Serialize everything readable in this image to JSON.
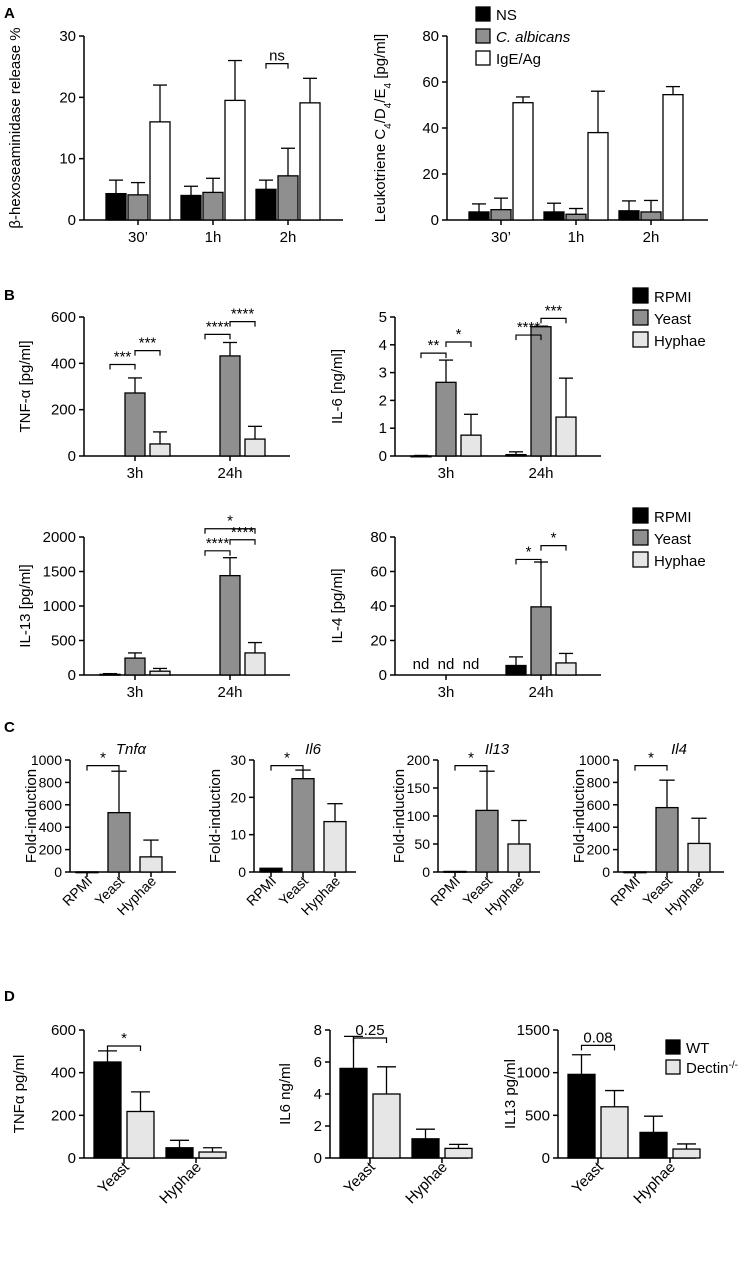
{
  "colors": {
    "black": "#000000",
    "gray": "#8f8f8f",
    "light": "#e6e6e6",
    "white": "#ffffff"
  },
  "panel_labels": {
    "A": "A",
    "B": "B",
    "C": "C",
    "D": "D"
  },
  "chart_data": [
    {
      "id": "a1",
      "type": "bar",
      "ylabel": "β-hexoseaminidase release %",
      "ylim": [
        0,
        30
      ],
      "yticks": [
        0,
        10,
        20,
        30
      ],
      "categories": [
        "30’",
        "1h",
        "2h"
      ],
      "series": [
        {
          "name": "NS",
          "color": "black",
          "values": [
            4.3,
            4.0,
            5.0
          ],
          "errors": [
            2.2,
            1.5,
            1.5
          ]
        },
        {
          "name": "C. albicans",
          "color": "gray",
          "values": [
            4.1,
            4.5,
            7.2
          ],
          "errors": [
            2.0,
            2.3,
            4.5
          ]
        },
        {
          "name": "IgE/Ag",
          "color": "white",
          "values": [
            16.0,
            19.5,
            19.1
          ],
          "errors": [
            6.0,
            6.5,
            4.0
          ]
        }
      ],
      "annotations": [
        {
          "text": "ns",
          "cat": 2,
          "from": 0,
          "to": 1,
          "y": 25.5
        }
      ]
    },
    {
      "id": "a2",
      "type": "bar",
      "ylabel": "Leukotriene C4/D4/E4 [pg/ml]",
      "ylim": [
        0,
        80
      ],
      "yticks": [
        0,
        20,
        40,
        60,
        80
      ],
      "categories": [
        "30’",
        "1h",
        "2h"
      ],
      "series": [
        {
          "name": "NS",
          "color": "black",
          "values": [
            3.5,
            3.5,
            4.0
          ],
          "errors": [
            3.5,
            3.8,
            4.3
          ]
        },
        {
          "name": "C. albicans",
          "color": "gray",
          "values": [
            4.5,
            2.5,
            3.5
          ],
          "errors": [
            5.0,
            2.5,
            5.0
          ]
        },
        {
          "name": "IgE/Ag",
          "color": "white",
          "values": [
            51.0,
            38.0,
            54.5
          ],
          "errors": [
            2.5,
            18.0,
            3.5
          ]
        }
      ],
      "legend": {
        "position": "top-right",
        "entries": [
          "NS",
          "C. albicans",
          "IgE/Ag"
        ]
      }
    },
    {
      "id": "b1",
      "type": "bar",
      "ylabel": "TNF-α [pg/ml]",
      "ylim": [
        0,
        600
      ],
      "yticks": [
        0,
        200,
        400,
        600
      ],
      "categories": [
        "3h",
        "24h"
      ],
      "series": [
        {
          "name": "RPMI",
          "color": "black",
          "values": [
            0,
            0
          ],
          "errors": [
            0,
            0
          ]
        },
        {
          "name": "Yeast",
          "color": "gray",
          "values": [
            272,
            432
          ],
          "errors": [
            65,
            58
          ]
        },
        {
          "name": "Hyphae",
          "color": "light",
          "values": [
            52,
            73
          ],
          "errors": [
            52,
            55
          ]
        }
      ],
      "annotations": [
        {
          "text": "***",
          "cat": 0,
          "from": 0,
          "to": 1,
          "y": 395
        },
        {
          "text": "***",
          "cat": 0,
          "from": 1,
          "to": 2,
          "y": 455
        },
        {
          "text": "****",
          "cat": 1,
          "from": 0,
          "to": 1,
          "y": 525
        },
        {
          "text": "****",
          "cat": 1,
          "from": 1,
          "to": 2,
          "y": 580
        }
      ]
    },
    {
      "id": "b2",
      "type": "bar",
      "ylabel": "IL-6 [ng/ml]",
      "ylim": [
        0,
        5
      ],
      "yticks": [
        0,
        1,
        2,
        3,
        4,
        5
      ],
      "categories": [
        "3h",
        "24h"
      ],
      "series": [
        {
          "name": "RPMI",
          "color": "black",
          "values": [
            0,
            0.05
          ],
          "errors": [
            0.02,
            0.1
          ]
        },
        {
          "name": "Yeast",
          "color": "gray",
          "values": [
            2.65,
            4.65
          ],
          "errors": [
            0.8,
            0.02
          ]
        },
        {
          "name": "Hyphae",
          "color": "light",
          "values": [
            0.75,
            1.4
          ],
          "errors": [
            0.75,
            1.4
          ]
        }
      ],
      "annotations": [
        {
          "text": "**",
          "cat": 0,
          "from": 0,
          "to": 1,
          "y": 3.7
        },
        {
          "text": "*",
          "cat": 0,
          "from": 1,
          "to": 2,
          "y": 4.1
        },
        {
          "text": "****",
          "cat": 1,
          "from": 0,
          "to": 1,
          "y": 4.35
        },
        {
          "text": "***",
          "cat": 1,
          "from": 1,
          "to": 2,
          "y": 4.95
        }
      ],
      "legend": {
        "position": "right",
        "entries": [
          "RPMI",
          "Yeast",
          "Hyphae"
        ]
      }
    },
    {
      "id": "b3",
      "type": "bar",
      "ylabel": "IL-13 [pg/ml]",
      "ylim": [
        0,
        2000
      ],
      "yticks": [
        0,
        500,
        1000,
        1500,
        2000
      ],
      "categories": [
        "3h",
        "24h"
      ],
      "series": [
        {
          "name": "RPMI",
          "color": "black",
          "values": [
            10,
            0
          ],
          "errors": [
            10,
            0
          ]
        },
        {
          "name": "Yeast",
          "color": "gray",
          "values": [
            245,
            1440
          ],
          "errors": [
            75,
            260
          ]
        },
        {
          "name": "Hyphae",
          "color": "light",
          "values": [
            55,
            320
          ],
          "errors": [
            40,
            150
          ]
        }
      ],
      "annotations": [
        {
          "text": "****",
          "cat": 1,
          "from": 0,
          "to": 1,
          "y": 1800
        },
        {
          "text": "****",
          "cat": 1,
          "from": 1,
          "to": 2,
          "y": 1960
        },
        {
          "text": "*",
          "cat": 1,
          "from": 0,
          "to": 2,
          "y": 2120
        }
      ]
    },
    {
      "id": "b4",
      "type": "bar",
      "ylabel": "IL-4 [pg/ml]",
      "ylim": [
        0,
        80
      ],
      "yticks": [
        0,
        20,
        40,
        60,
        80
      ],
      "categories": [
        "3h",
        "24h"
      ],
      "series": [
        {
          "name": "RPMI",
          "color": "black",
          "values": [
            0,
            5.5
          ],
          "errors": [
            0,
            5
          ]
        },
        {
          "name": "Yeast",
          "color": "gray",
          "values": [
            0,
            39.5
          ],
          "errors": [
            0,
            26
          ]
        },
        {
          "name": "Hyphae",
          "color": "light",
          "values": [
            0,
            7
          ],
          "errors": [
            0,
            5.5
          ]
        }
      ],
      "nd_labels": [
        "nd",
        "nd",
        "nd"
      ],
      "annotations": [
        {
          "text": "*",
          "cat": 1,
          "from": 0,
          "to": 1,
          "y": 67
        },
        {
          "text": "*",
          "cat": 1,
          "from": 1,
          "to": 2,
          "y": 75
        }
      ],
      "legend": {
        "position": "right",
        "entries": [
          "RPMI",
          "Yeast",
          "Hyphae"
        ]
      }
    },
    {
      "id": "c1",
      "type": "bar",
      "title": "Tnfα",
      "ylabel": "Fold-induction",
      "ylim": [
        0,
        1000
      ],
      "yticks": [
        0,
        200,
        400,
        600,
        800,
        1000
      ],
      "categories": [
        "RPMI",
        "Yeast",
        "Hyphae"
      ],
      "colors": [
        "black",
        "gray",
        "light"
      ],
      "values": [
        1,
        530,
        135
      ],
      "errors": [
        0,
        370,
        150
      ],
      "annotations": [
        {
          "text": "*",
          "from": 0,
          "to": 1,
          "y": 950
        }
      ]
    },
    {
      "id": "c2",
      "type": "bar",
      "title": "Il6",
      "ylabel": "Fold-induction",
      "ylim": [
        0,
        30
      ],
      "yticks": [
        0,
        10,
        20,
        30
      ],
      "categories": [
        "RPMI",
        "Yeast",
        "Hyphae"
      ],
      "colors": [
        "black",
        "gray",
        "light"
      ],
      "values": [
        1,
        25,
        13.5
      ],
      "errors": [
        0,
        2.3,
        4.8
      ],
      "annotations": [
        {
          "text": "*",
          "from": 0,
          "to": 1,
          "y": 28.5
        }
      ]
    },
    {
      "id": "c3",
      "type": "bar",
      "title": "Il13",
      "ylabel": "Fold-induction",
      "ylim": [
        0,
        200
      ],
      "yticks": [
        0,
        50,
        100,
        150,
        200
      ],
      "categories": [
        "RPMI",
        "Yeast",
        "Hyphae"
      ],
      "colors": [
        "black",
        "gray",
        "light"
      ],
      "values": [
        1,
        110,
        50
      ],
      "errors": [
        0,
        70,
        42
      ],
      "annotations": [
        {
          "text": "*",
          "from": 0,
          "to": 1,
          "y": 190
        }
      ]
    },
    {
      "id": "c4",
      "type": "bar",
      "title": "Il4",
      "ylabel": "Fold-induction",
      "ylim": [
        0,
        1000
      ],
      "yticks": [
        0,
        200,
        400,
        600,
        800,
        1000
      ],
      "categories": [
        "RPMI",
        "Yeast",
        "Hyphae"
      ],
      "colors": [
        "black",
        "gray",
        "light"
      ],
      "values": [
        1,
        575,
        255
      ],
      "errors": [
        0,
        245,
        225
      ],
      "annotations": [
        {
          "text": "*",
          "from": 0,
          "to": 1,
          "y": 950
        }
      ]
    },
    {
      "id": "d1",
      "type": "bar",
      "ylabel": "TNFα  pg/ml",
      "ylim": [
        0,
        600
      ],
      "yticks": [
        0,
        200,
        400,
        600
      ],
      "categories": [
        "Yeast",
        "Hyphae"
      ],
      "series": [
        {
          "name": "WT",
          "color": "black",
          "values": [
            450,
            48
          ],
          "errors": [
            52,
            35
          ]
        },
        {
          "name": "Dectin-/-",
          "color": "light",
          "values": [
            218,
            28
          ],
          "errors": [
            92,
            20
          ]
        }
      ],
      "annotations": [
        {
          "text": "*",
          "cat": 0,
          "from": 0,
          "to": 1,
          "y": 525
        }
      ]
    },
    {
      "id": "d2",
      "type": "bar",
      "ylabel": "IL6 ng/ml",
      "ylim": [
        0,
        8
      ],
      "yticks": [
        0,
        2,
        4,
        6,
        8
      ],
      "categories": [
        "Yeast",
        "Hyphae"
      ],
      "series": [
        {
          "name": "WT",
          "color": "black",
          "values": [
            5.6,
            1.2
          ],
          "errors": [
            2.0,
            0.6
          ]
        },
        {
          "name": "Dectin-/-",
          "color": "light",
          "values": [
            4.0,
            0.6
          ],
          "errors": [
            1.7,
            0.25
          ]
        }
      ],
      "annotations": [
        {
          "text": "0.25",
          "cat": 0,
          "from": 0,
          "to": 1,
          "y": 7.5
        }
      ]
    },
    {
      "id": "d3",
      "type": "bar",
      "ylabel": "IL13 pg/ml",
      "ylim": [
        0,
        1500
      ],
      "yticks": [
        0,
        500,
        1000,
        1500
      ],
      "categories": [
        "Yeast",
        "Hyphae"
      ],
      "series": [
        {
          "name": "WT",
          "color": "black",
          "values": [
            980,
            300
          ],
          "errors": [
            230,
            190
          ]
        },
        {
          "name": "Dectin-/-",
          "color": "light",
          "values": [
            600,
            105
          ],
          "errors": [
            190,
            60
          ]
        }
      ],
      "annotations": [
        {
          "text": "0.08",
          "cat": 0,
          "from": 0,
          "to": 1,
          "y": 1320
        }
      ],
      "legend": {
        "position": "top-right",
        "entries": [
          "WT",
          "Dectin-/-"
        ]
      }
    }
  ]
}
